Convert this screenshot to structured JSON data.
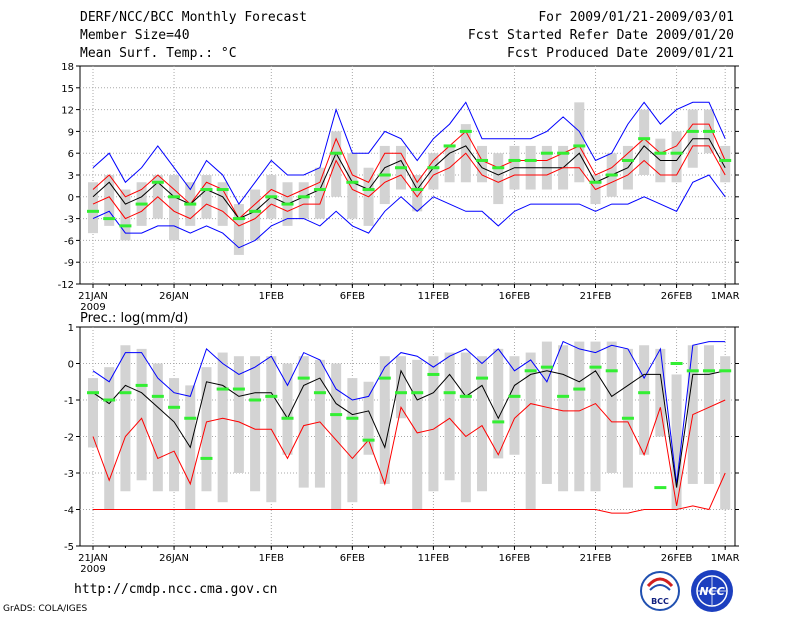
{
  "header": {
    "title": "DERF/NCC/BCC Monthly Forecast",
    "member_size": "Member Size=40",
    "variable": "Mean Surf. Temp.: °C",
    "period": "For 2009/01/21-2009/03/01",
    "refer_date": "Fcst Started Refer Date 2009/01/20",
    "produced_date": "Fcst Produced Date 2009/01/21"
  },
  "footer": {
    "url": "http://cmdp.ncc.cma.gov.cn",
    "grads": "GrADS: COLA/IGES",
    "logo1_text": "BCC",
    "logo2_text": "NCC"
  },
  "colors": {
    "envelope": "#0000ff",
    "spread": "#ff0000",
    "mean": "#000000",
    "median": "#33ee33",
    "box": "#d3d3d3",
    "grid": "#a9a9a9"
  },
  "chart_data": [
    {
      "type": "line",
      "title": "Mean Surf. Temp.: °C",
      "x_tick_labels": [
        "21JAN",
        "26JAN",
        "1FEB",
        "6FEB",
        "11FEB",
        "16FEB",
        "21FEB",
        "26FEB",
        "1MAR"
      ],
      "x_tick_days": [
        1,
        6,
        12,
        17,
        22,
        27,
        32,
        37,
        40
      ],
      "x_year_label": "2009",
      "ylim": [
        -12,
        18
      ],
      "yticks": [
        -12,
        -9,
        -6,
        -3,
        0,
        3,
        6,
        9,
        12,
        15,
        18
      ],
      "x": [
        1,
        2,
        3,
        4,
        5,
        6,
        7,
        8,
        9,
        10,
        11,
        12,
        13,
        14,
        15,
        16,
        17,
        18,
        19,
        20,
        21,
        22,
        23,
        24,
        25,
        26,
        27,
        28,
        29,
        30,
        31,
        32,
        33,
        34,
        35,
        36,
        37,
        38,
        39,
        40
      ],
      "series": [
        {
          "name": "max",
          "color": "blue",
          "values": [
            4,
            6,
            2,
            4,
            7,
            4,
            1,
            5,
            3,
            -1,
            2,
            5,
            3,
            3,
            4,
            12,
            6,
            6,
            9,
            8,
            5,
            8,
            10,
            13,
            8,
            8,
            8,
            8,
            9,
            11,
            9,
            5,
            6,
            10,
            13,
            10,
            12,
            13,
            13,
            8
          ]
        },
        {
          "name": "upper",
          "color": "red",
          "values": [
            1,
            3,
            0,
            1,
            3,
            1,
            -1,
            2,
            1,
            -3,
            -1,
            1,
            0,
            1,
            2,
            8,
            3,
            2,
            6,
            6,
            2,
            5,
            7,
            9,
            5,
            4,
            5,
            5,
            5,
            6,
            7,
            3,
            4,
            6,
            8,
            6,
            7,
            10,
            10,
            5
          ]
        },
        {
          "name": "mean",
          "color": "black",
          "values": [
            0,
            2,
            -1,
            0,
            2,
            0,
            -1,
            1,
            0,
            -3,
            -2,
            0,
            -1,
            0,
            1,
            6,
            2,
            1,
            4,
            5,
            1,
            4,
            6,
            7,
            4,
            3,
            4,
            4,
            4,
            4,
            6,
            2,
            3,
            4,
            7,
            5,
            5,
            8,
            8,
            4
          ]
        },
        {
          "name": "lower",
          "color": "red",
          "values": [
            -1,
            0,
            -3,
            -2,
            0,
            -2,
            -3,
            -1,
            -2,
            -4,
            -3,
            -1,
            -2,
            -1,
            -1,
            5,
            1,
            0,
            2,
            3,
            0,
            3,
            4,
            6,
            3,
            2,
            3,
            3,
            3,
            4,
            4,
            1,
            2,
            3,
            5,
            3,
            3,
            7,
            7,
            3
          ]
        },
        {
          "name": "min",
          "color": "blue",
          "values": [
            -3,
            -2,
            -5,
            -5,
            -4,
            -4,
            -5,
            -4,
            -5,
            -7,
            -6,
            -4,
            -3,
            -3,
            -4,
            -2,
            -4,
            -5,
            -2,
            0,
            -2,
            0,
            -1,
            -2,
            -2,
            -4,
            -2,
            -1,
            -1,
            -1,
            -1,
            -2,
            -1,
            -1,
            0,
            -1,
            -2,
            2,
            3,
            0
          ]
        }
      ],
      "medians": [
        -2,
        -3,
        -4,
        -1,
        2,
        0,
        -1,
        1,
        1,
        -3,
        -2,
        0,
        -1,
        0,
        1,
        6,
        2,
        1,
        3,
        4,
        1,
        4,
        7,
        9,
        5,
        4,
        5,
        5,
        6,
        6,
        7,
        2,
        3,
        5,
        8,
        6,
        6,
        9,
        9,
        5
      ],
      "box_low": [
        -5,
        -4,
        -6,
        -4,
        -3,
        -6,
        -4,
        -3,
        -4,
        -8,
        -6,
        -3,
        -4,
        -3,
        -3,
        0,
        -3,
        -4,
        -1,
        1,
        -2,
        1,
        2,
        2,
        2,
        -1,
        1,
        1,
        1,
        1,
        2,
        -1,
        0,
        1,
        3,
        2,
        2,
        4,
        6,
        2
      ],
      "box_high": [
        2,
        3,
        1,
        2,
        3,
        3,
        2,
        3,
        2,
        -1,
        1,
        3,
        2,
        2,
        4,
        9,
        6,
        4,
        7,
        7,
        3,
        6,
        7,
        10,
        7,
        6,
        7,
        7,
        7,
        7,
        13,
        3,
        6,
        7,
        12,
        8,
        9,
        12,
        12,
        7
      ]
    },
    {
      "type": "line",
      "title": "Prec.: log(mm/d)",
      "x_tick_labels": [
        "21JAN",
        "26JAN",
        "1FEB",
        "6FEB",
        "11FEB",
        "16FEB",
        "21FEB",
        "26FEB",
        "1MAR"
      ],
      "x_tick_days": [
        1,
        6,
        12,
        17,
        22,
        27,
        32,
        37,
        40
      ],
      "x_year_label": "2009",
      "ylim": [
        -5,
        1
      ],
      "yticks": [
        -5,
        -4,
        -3,
        -2,
        -1,
        0,
        1
      ],
      "x": [
        1,
        2,
        3,
        4,
        5,
        6,
        7,
        8,
        9,
        10,
        11,
        12,
        13,
        14,
        15,
        16,
        17,
        18,
        19,
        20,
        21,
        22,
        23,
        24,
        25,
        26,
        27,
        28,
        29,
        30,
        31,
        32,
        33,
        34,
        35,
        36,
        37,
        38,
        39,
        40
      ],
      "series": [
        {
          "name": "max",
          "color": "blue",
          "values": [
            -0.2,
            -0.5,
            0.3,
            0.3,
            -0.4,
            -0.8,
            -0.9,
            0.4,
            0,
            -0.3,
            -0.1,
            0.2,
            -0.6,
            0.3,
            0.1,
            -0.7,
            -1,
            -0.9,
            -0.1,
            0.3,
            0.2,
            -0.1,
            0.2,
            0.4,
            0,
            0.4,
            -0.2,
            0.1,
            -0.5,
            0.6,
            0.4,
            0.3,
            0.5,
            0.4,
            -0.4,
            0.4,
            -3.3,
            0.5,
            0.6,
            0.6
          ]
        },
        {
          "name": "mean",
          "color": "black",
          "values": [
            -0.8,
            -1.1,
            -0.6,
            -0.8,
            -1.2,
            -1.6,
            -2.3,
            -0.5,
            -0.6,
            -0.9,
            -0.8,
            -0.8,
            -1.5,
            -0.6,
            -0.4,
            -1.1,
            -1.4,
            -1.3,
            -2.3,
            -0.2,
            -1,
            -0.8,
            -0.3,
            -0.9,
            -0.6,
            -1.5,
            -0.6,
            -0.3,
            -0.2,
            -0.3,
            -0.5,
            -0.2,
            -0.9,
            -0.6,
            -0.3,
            -0.3,
            -3.4,
            -0.3,
            -0.3,
            -0.2
          ]
        },
        {
          "name": "upper",
          "color": "red",
          "values": [
            -2,
            -3.2,
            -2,
            -1.5,
            -2.6,
            -2.4,
            -3.3,
            -1.6,
            -1.5,
            -1.6,
            -1.8,
            -1.8,
            -2.6,
            -1.7,
            -1.6,
            -2.1,
            -2.6,
            -2.1,
            -3.3,
            -1.2,
            -1.9,
            -1.8,
            -1.5,
            -2,
            -1.7,
            -2.5,
            -1.5,
            -1.1,
            -1.2,
            -1.3,
            -1.3,
            -1.1,
            -1.6,
            -1.6,
            -2.5,
            -1.2,
            -3.9,
            -1.4,
            -1.2,
            -1.0
          ]
        },
        {
          "name": "lower",
          "color": "red",
          "values": [
            -4,
            -4,
            -4,
            -4,
            -4,
            -4,
            -4,
            -4,
            -4,
            -4,
            -4,
            -4,
            -4,
            -4,
            -4,
            -4,
            -4,
            -4,
            -4,
            -4,
            -4,
            -4,
            -4,
            -4,
            -4,
            -4,
            -4,
            -4,
            -4,
            -4,
            -4,
            -4,
            -4.1,
            -4.1,
            -4,
            -4,
            -4,
            -3.9,
            -4,
            -3.0
          ]
        }
      ],
      "medians": [
        -0.8,
        -1,
        -0.8,
        -0.6,
        -0.9,
        -1.2,
        -1.5,
        -2.6,
        -0.7,
        -0.7,
        -1,
        -0.9,
        -1.5,
        -0.4,
        -0.8,
        -1.4,
        -1.5,
        -2.1,
        -0.4,
        -0.8,
        -0.8,
        -0.3,
        -0.8,
        -0.9,
        -0.4,
        -1.6,
        -0.9,
        -0.2,
        -0.1,
        -0.9,
        -0.7,
        -0.1,
        -0.2,
        -1.5,
        -0.8,
        -3.4,
        0,
        -0.2,
        -0.2,
        -0.2
      ],
      "box_low": [
        -2.3,
        -4,
        -3.5,
        -3.2,
        -3.5,
        -3.5,
        -4,
        -3.5,
        -3.8,
        -3,
        -3.5,
        -3.8,
        -2.5,
        -3.4,
        -3.4,
        -4,
        -3.8,
        -2.5,
        -3.3,
        -1.5,
        -4,
        -3.5,
        -3.2,
        -3.8,
        -3.5,
        -2.6,
        -2.5,
        -4,
        -3.3,
        -3.5,
        -3.5,
        -3.5,
        -3,
        -3.4,
        -2.5,
        -2,
        -4,
        -3.3,
        -3.3,
        -4
      ],
      "box_high": [
        -0.4,
        -0.1,
        0.5,
        0.4,
        0,
        -0.4,
        -0.6,
        -0.1,
        0.3,
        0.2,
        0.2,
        0.2,
        0,
        0.2,
        0.1,
        0,
        -0.4,
        -0.5,
        0.2,
        0.2,
        0.1,
        0.2,
        0.3,
        0.3,
        0.2,
        0.4,
        0.2,
        0.3,
        0.6,
        0.5,
        0.6,
        0.6,
        0.6,
        0.4,
        0.5,
        0.4,
        -0.3,
        0.5,
        0.5,
        0.2
      ]
    }
  ]
}
